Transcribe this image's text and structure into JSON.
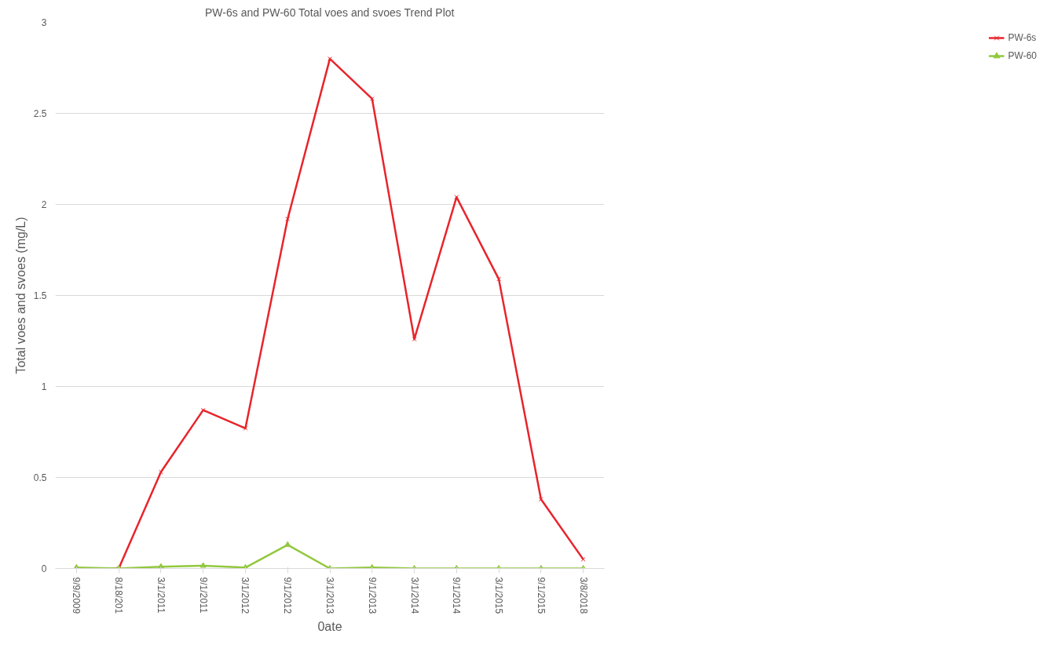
{
  "chart_data": {
    "type": "line",
    "title": "PW-6s and PW-60 Total voes and svoes Trend Plot",
    "xlabel": "0ate",
    "ylabel": "Total voes and svoes (mg/L)",
    "categories": [
      "9/9/2009",
      "8/18/201",
      "3/1/2011",
      "9/1/2011",
      "3/1/2012",
      "9/1/2012",
      "3/1/2013",
      "9/1/2013",
      "3/1/2014",
      "9/1/2014",
      "3/1/2015",
      "9/1/2015",
      "3/8/2018"
    ],
    "series": [
      {
        "name": "PW-6s",
        "color": "#e8242b",
        "marker": "cross",
        "values": [
          0,
          0,
          0.53,
          0.87,
          0.77,
          1.92,
          2.8,
          2.58,
          1.26,
          2.04,
          1.59,
          0.38,
          0.05
        ]
      },
      {
        "name": "PW-60",
        "color": "#92c83e",
        "marker": "triangle",
        "values": [
          0.005,
          0,
          0.01,
          0.015,
          0.005,
          0.13,
          0,
          0.005,
          0,
          0,
          0,
          0,
          0
        ]
      }
    ],
    "ylim": [
      0,
      3
    ],
    "yticks": [
      0,
      0.5,
      1,
      1.5,
      2,
      2.5,
      3
    ],
    "grid": "y",
    "legend": "right",
    "line_style": "solid"
  }
}
